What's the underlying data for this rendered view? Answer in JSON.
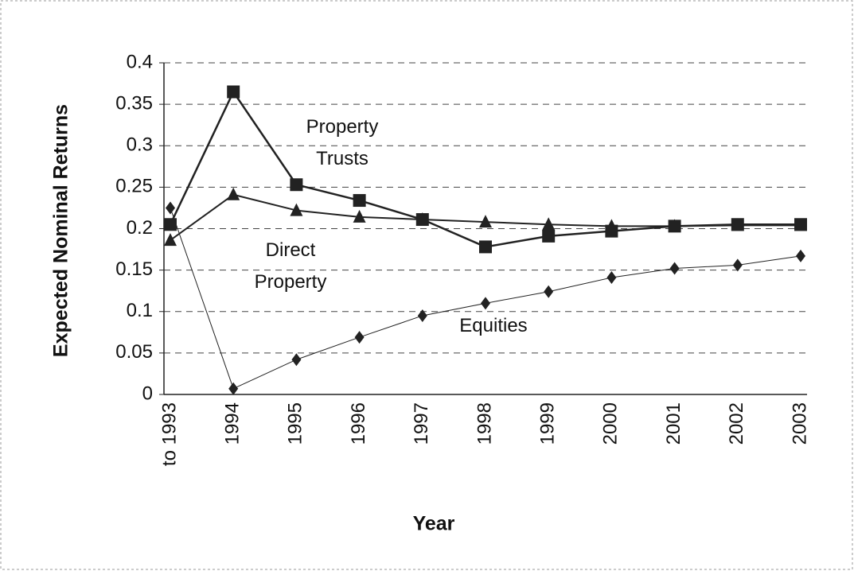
{
  "chart_data": {
    "type": "line",
    "y_label": "Expected Nominal Returns",
    "x_label": "Year",
    "categories": [
      "to 1993",
      "1994",
      "1995",
      "1996",
      "1997",
      "1998",
      "1999",
      "2000",
      "2001",
      "2002",
      "2003"
    ],
    "series": [
      {
        "name": "Property Trusts",
        "color": "#222222",
        "marker": "square",
        "values": [
          0.205,
          0.365,
          0.253,
          0.234,
          0.211,
          0.178,
          0.191,
          0.197,
          0.203,
          0.205,
          0.205
        ]
      },
      {
        "name": "Direct Property",
        "color": "#222222",
        "marker": "triangle",
        "values": [
          0.186,
          0.241,
          0.222,
          0.214,
          0.211,
          0.208,
          0.205,
          0.203,
          0.203,
          0.204,
          0.204
        ]
      },
      {
        "name": "Equities",
        "color": "#222222",
        "marker": "diamond",
        "values": [
          0.225,
          0.007,
          0.042,
          0.069,
          0.095,
          0.11,
          0.124,
          0.141,
          0.152,
          0.156,
          0.167
        ]
      }
    ],
    "ylim": [
      0,
      0.4
    ],
    "yticks": [
      0,
      0.05,
      0.1,
      0.15,
      0.2,
      0.25,
      0.3,
      0.35,
      0.4
    ],
    "grid": true
  }
}
